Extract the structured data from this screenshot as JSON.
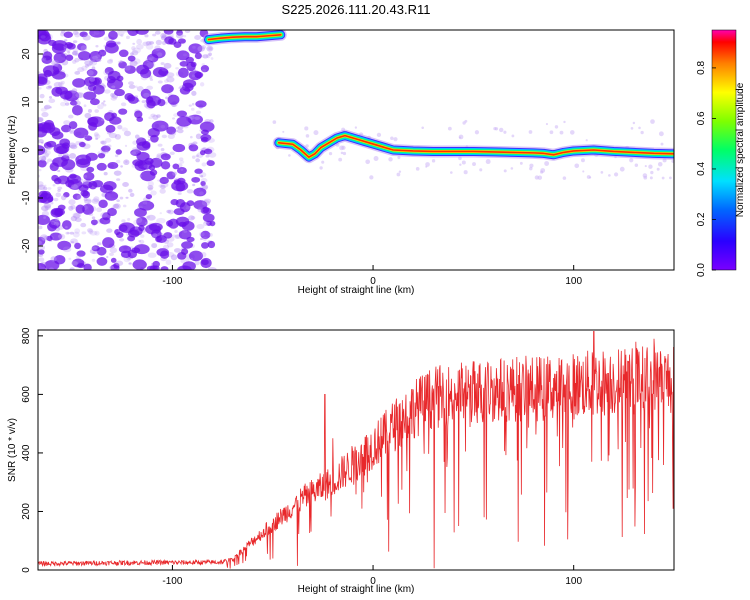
{
  "title": "S225.2026.111.20.43.R11",
  "colors": {
    "snr_line": "#e8282b",
    "noise_dots": "#7a22e0",
    "axis": "#000000",
    "background": "#ffffff"
  },
  "chart_data": [
    {
      "type": "heatmap",
      "title": "S225.2026.111.20.43.R11",
      "xlabel": "Height of straight line (km)",
      "ylabel": "Frequency (Hz)",
      "xlim": [
        -167,
        150
      ],
      "ylim": [
        -25,
        25
      ],
      "x_ticks": [
        -100,
        0,
        100
      ],
      "y_ticks": [
        -20,
        -10,
        0,
        10,
        20
      ],
      "colorbar": {
        "label": "Normalized spectral amplitude",
        "range": [
          0,
          0.95
        ],
        "ticks": [
          0.0,
          0.2,
          0.4,
          0.6,
          0.8
        ],
        "colormap": "rainbow (purple-blue-cyan-green-yellow-orange-red-magenta)"
      },
      "noise_region": {
        "x_range": [
          -167,
          -80
        ],
        "freq_range": [
          -25,
          25
        ],
        "amplitude": 0.05
      },
      "upper_track": {
        "x": [
          -82,
          -76,
          -70,
          -64,
          -58,
          -52,
          -46
        ],
        "freq": [
          23,
          23.3,
          23.5,
          23.6,
          23.6,
          23.8,
          24
        ]
      },
      "main_track": {
        "x": [
          -47,
          -40,
          -36,
          -32,
          -29,
          -26,
          -22,
          -18,
          -14,
          -10,
          -6,
          -2,
          2,
          6,
          10,
          20,
          30,
          40,
          50,
          60,
          70,
          80,
          85,
          90,
          95,
          100,
          110,
          120,
          130,
          140,
          150
        ],
        "freq": [
          1.5,
          1.2,
          0,
          -1.5,
          -0.8,
          0.5,
          1.5,
          2.5,
          3,
          2.5,
          2,
          1.5,
          1,
          0.5,
          0,
          -0.2,
          -0.3,
          -0.3,
          -0.3,
          -0.4,
          -0.5,
          -0.6,
          -0.7,
          -1,
          -0.5,
          -0.2,
          0,
          -0.3,
          -0.5,
          -0.7,
          -0.8
        ]
      }
    },
    {
      "type": "line",
      "xlabel": "Height of straight line (km)",
      "ylabel": "SNR (10 * v/v)",
      "xlim": [
        -167,
        150
      ],
      "ylim": [
        0,
        820
      ],
      "x_ticks": [
        -100,
        0,
        100
      ],
      "y_ticks": [
        0,
        200,
        400,
        600,
        800
      ],
      "series": [
        {
          "x": [
            -167,
            -140,
            -110,
            -90,
            -75,
            -70,
            -65,
            -60,
            -55,
            -50,
            -45,
            -40,
            -35,
            -30,
            -25,
            -20,
            -15,
            -10,
            -5,
            0,
            5,
            10,
            15,
            20,
            25,
            30,
            40,
            50,
            60,
            70,
            80,
            90,
            100,
            110,
            120,
            130,
            140,
            150
          ],
          "values": [
            20,
            22,
            24,
            24,
            25,
            40,
            70,
            100,
            130,
            160,
            190,
            220,
            250,
            270,
            290,
            310,
            340,
            370,
            400,
            430,
            460,
            500,
            530,
            560,
            580,
            600,
            610,
            620,
            625,
            630,
            630,
            635,
            640,
            650,
            655,
            660,
            665,
            660
          ],
          "fluctuation": 0.3,
          "spikes": [
            {
              "x": -24,
              "value": 600
            },
            {
              "x": -20,
              "value": 450
            },
            {
              "x": 110,
              "value": 815
            },
            {
              "x": 131,
              "value": 780
            },
            {
              "x": 140,
              "value": 790
            }
          ]
        }
      ]
    }
  ]
}
